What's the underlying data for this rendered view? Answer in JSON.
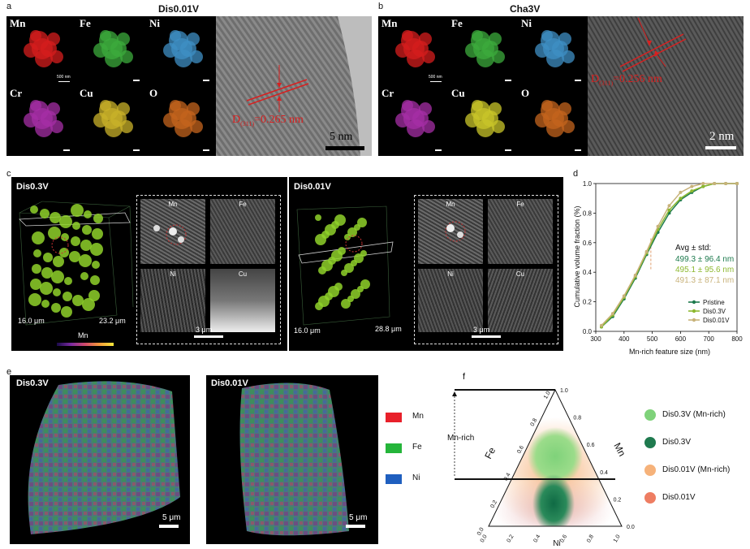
{
  "panel_a": {
    "letter": "a",
    "title": "Dis0.01V",
    "elements": [
      "Mn",
      "Fe",
      "Ni",
      "Cr",
      "Cu",
      "O"
    ],
    "colors": [
      "#d61e1e",
      "#3cab3c",
      "#3f8fc4",
      "#a62fa6",
      "#c9b22a",
      "#c4641e"
    ],
    "small_scale": "500 nm",
    "d_label": "D",
    "d_sub": "(311)",
    "d_value": "=0.265 nm",
    "tem_scale": "5 nm"
  },
  "panel_b": {
    "letter": "b",
    "title": "Cha3V",
    "elements": [
      "Mn",
      "Fe",
      "Ni",
      "Cr",
      "Cu",
      "O"
    ],
    "colors": [
      "#d61e1e",
      "#3cab3c",
      "#3f8fc4",
      "#a62fa6",
      "#c9c52a",
      "#c4641e"
    ],
    "small_scale": "500 nm",
    "d_label": "D",
    "d_sub": "(311)",
    "d_value": "=0.256 nm",
    "tem_scale": "2 nm"
  },
  "panel_c": {
    "letter": "c",
    "left": {
      "title": "Dis0.3V",
      "dim1": "16.0 μm",
      "dim2": "23.2 μm",
      "colorbar_label": "Mn",
      "tiles": [
        "Mn",
        "Fe",
        "Ni",
        "Cu"
      ],
      "scale": "3 μm"
    },
    "right": {
      "title": "Dis0.01V",
      "dim1": "16.0 μm",
      "dim2": "28.8 μm",
      "tiles": [
        "Mn",
        "Fe",
        "Ni",
        "Cu"
      ],
      "scale": "3 μm"
    }
  },
  "panel_d": {
    "letter": "d",
    "avg_title": "Avg ± std:",
    "avg_lines": [
      {
        "text": "499.3 ± 96.4 nm",
        "color": "#1d7a4d"
      },
      {
        "text": "495.1 ± 95.6 nm",
        "color": "#8db82f"
      },
      {
        "text": "491.3 ± 87.1 nm",
        "color": "#c8b27a"
      }
    ]
  },
  "chart_data": {
    "type": "line",
    "xlabel": "Mn-rich feature size (nm)",
    "ylabel": "Cumulative volume fraction (%)",
    "xlim": [
      300,
      800
    ],
    "ylim": [
      0,
      1.0
    ],
    "xticks": [
      "300",
      "400",
      "500",
      "600",
      "700",
      "800"
    ],
    "yticks": [
      "0.0",
      "0.2",
      "0.4",
      "0.6",
      "0.8",
      "1.0"
    ],
    "legend_position": "bottom-right",
    "series": [
      {
        "name": "Pristine",
        "color": "#1d7a4d",
        "x": [
          320,
          360,
          400,
          440,
          480,
          520,
          560,
          600,
          640,
          680,
          720,
          760,
          800
        ],
        "y": [
          0.03,
          0.1,
          0.22,
          0.36,
          0.52,
          0.67,
          0.8,
          0.89,
          0.94,
          0.98,
          1.0,
          1.0,
          1.0
        ]
      },
      {
        "name": "Dis0.3V",
        "color": "#8db82f",
        "x": [
          320,
          360,
          400,
          440,
          480,
          520,
          560,
          600,
          640,
          680,
          720,
          760,
          800
        ],
        "y": [
          0.03,
          0.11,
          0.23,
          0.37,
          0.53,
          0.69,
          0.82,
          0.9,
          0.95,
          0.98,
          1.0,
          1.0,
          1.0
        ]
      },
      {
        "name": "Dis0.01V",
        "color": "#c8b27a",
        "x": [
          320,
          360,
          400,
          440,
          480,
          520,
          560,
          600,
          640,
          680,
          720,
          760,
          800
        ],
        "y": [
          0.04,
          0.12,
          0.24,
          0.38,
          0.54,
          0.71,
          0.85,
          0.94,
          0.98,
          1.0,
          1.0,
          1.0,
          1.0
        ]
      }
    ]
  },
  "panel_e": {
    "letter": "e",
    "left_title": "Dis0.3V",
    "right_title": "Dis0.01V",
    "scale": "5 μm",
    "legend": [
      {
        "label": "Mn",
        "color": "#e8202a"
      },
      {
        "label": "Fe",
        "color": "#25b53a"
      },
      {
        "label": "Ni",
        "color": "#1f5fbf"
      }
    ]
  },
  "panel_f": {
    "letter": "f",
    "axis_fe": "Fe",
    "axis_mn": "Mn",
    "axis_ni": "Ni",
    "mn_rich": "Mn-rich",
    "left_ticks": [
      "0.0",
      "0.2",
      "0.4",
      "0.6",
      "0.8",
      "1.0"
    ],
    "right_ticks": [
      "1.0",
      "0.8",
      "0.6",
      "0.4",
      "0.2",
      "0.0"
    ],
    "bottom_ticks": [
      "0.0",
      "0.2",
      "0.4",
      "0.6",
      "0.8",
      "1.0"
    ],
    "legend": [
      {
        "label": "Dis0.3V (Mn-rich)",
        "color": "#7fd27a"
      },
      {
        "label": "Dis0.3V",
        "color": "#1f7a4f"
      },
      {
        "label": "Dis0.01V  (Mn-rich)",
        "color": "#f6b27a"
      },
      {
        "label": "Dis0.01V",
        "color": "#ee7d62"
      }
    ]
  }
}
